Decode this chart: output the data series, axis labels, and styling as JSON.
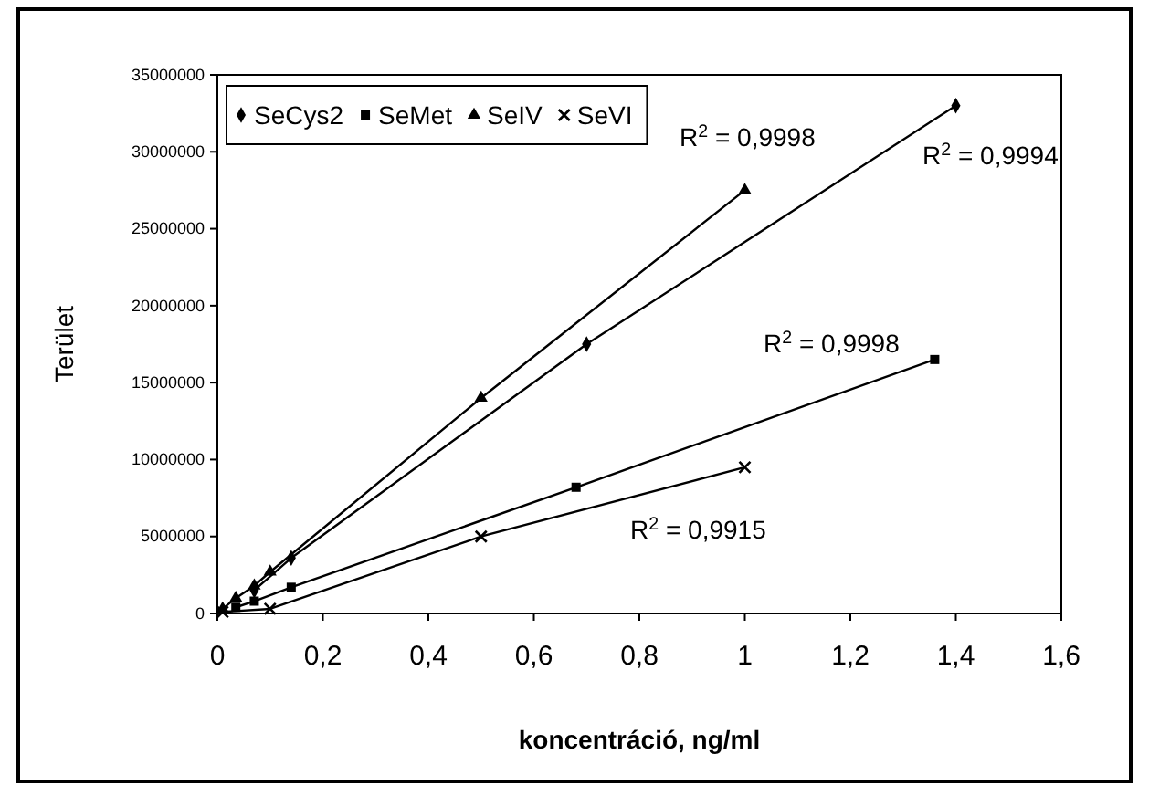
{
  "chart_data": {
    "type": "line",
    "xlabel": "koncentráció, ng/ml",
    "ylabel": "Terület",
    "xlim": [
      0,
      1.6
    ],
    "xticks": [
      0,
      {
        "value": 0.2,
        "label": "0,2"
      },
      {
        "value": 0.4,
        "label": "0,4"
      },
      {
        "value": 0.6,
        "label": "0,6"
      },
      {
        "value": 0.8,
        "label": "0,8"
      },
      1,
      {
        "value": 1.2,
        "label": "1,2"
      },
      {
        "value": 1.4,
        "label": "1,4"
      },
      {
        "value": 1.6,
        "label": "1,6"
      }
    ],
    "ylim": [
      0,
      35000000
    ],
    "yticks": [
      0,
      5000000,
      10000000,
      15000000,
      20000000,
      25000000,
      30000000,
      35000000
    ],
    "grid": false,
    "legend": "top left",
    "series": [
      {
        "name": "SeCys2",
        "color": "#000000",
        "marker": "diamond",
        "x": [
          0.07,
          0.1,
          0.14,
          0.7,
          1.4
        ],
        "values": [
          1500000,
          null,
          3600000,
          17500000,
          33000000
        ]
      },
      {
        "name": "SeMet",
        "color": "#000000",
        "marker": "square",
        "x": [
          0.035,
          0.07,
          0.14,
          0.68,
          1.36
        ],
        "values": [
          400000,
          800000,
          1700000,
          8200000,
          16500000
        ]
      },
      {
        "name": "SeIV",
        "color": "#000000",
        "marker": "triangle",
        "x": [
          0.01,
          0.035,
          0.07,
          0.1,
          0.5,
          1
        ],
        "values": [
          300000,
          1000000,
          1800000,
          2700000,
          14000000,
          27500000
        ]
      },
      {
        "name": "SeVI",
        "color": "#000000",
        "marker": "cross",
        "x": [
          0.01,
          0.1,
          0.5,
          1
        ],
        "values": [
          100000,
          300000,
          5000000,
          9500000
        ]
      }
    ],
    "annotations": [
      "R$^{2}$ = 0,9998",
      "R$^{2}$ = 0,9994",
      "R$^{2}$ = 0,9998",
      "R$^{2}$ = 0,9915"
    ]
  }
}
